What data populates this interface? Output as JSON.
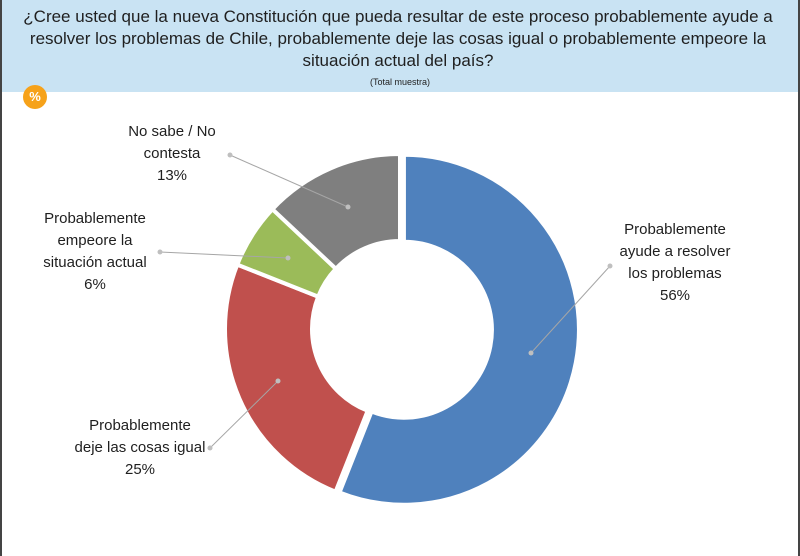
{
  "header": {
    "title_lines": [
      "¿Cree usted que la nueva Constitución que pueda resultar de este proceso probablemente ayude a",
      "resolver los problemas de Chile, probablemente deje las cosas igual o probablemente empeore la",
      "situación actual del país?"
    ],
    "sample_note": "(Total muestra)",
    "badge": "%"
  },
  "chart_data": {
    "type": "pie",
    "variant": "donut",
    "slices": [
      {
        "label_lines": [
          "Probablemente",
          "ayude a resolver",
          "los problemas"
        ],
        "value": 56,
        "value_label": "56%",
        "color": "#4f81bd"
      },
      {
        "label_lines": [
          "Probablemente",
          "deje las cosas igual"
        ],
        "value": 25,
        "value_label": "25%",
        "color": "#c0504d"
      },
      {
        "label_lines": [
          "Probablemente",
          "empeore la",
          "situación actual"
        ],
        "value": 6,
        "value_label": "6%",
        "color": "#9bbb59"
      },
      {
        "label_lines": [
          "No sabe / No",
          "contesta"
        ],
        "value": 13,
        "value_label": "13%",
        "color": "#7f7f7f"
      }
    ]
  }
}
